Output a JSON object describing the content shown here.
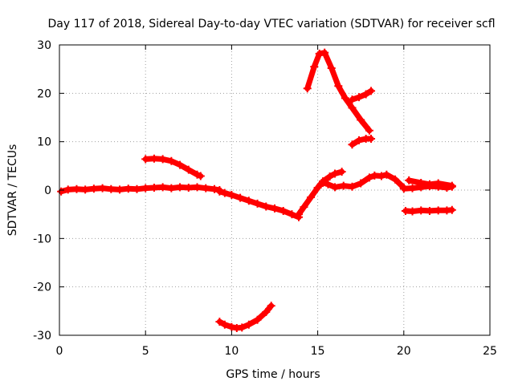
{
  "chart_data": {
    "type": "scatter",
    "title": "Day 117 of 2018, Sidereal Day-to-day VTEC variation (SDTVAR) for receiver scfl",
    "xlabel": "GPS time / hours",
    "ylabel": "SDTVAR / TECUs",
    "xlim": [
      0,
      25
    ],
    "ylim": [
      -30,
      30
    ],
    "xticks": [
      "0",
      "5",
      "10",
      "15",
      "20",
      "25"
    ],
    "yticks": [
      "-30",
      "-20",
      "-10",
      "0",
      "10",
      "20",
      "30"
    ],
    "grid": true,
    "marker": "+",
    "color": "#ff0000",
    "series": [
      {
        "x": [
          0.1,
          0.5,
          1.0,
          1.5,
          2.0,
          2.5,
          3.0,
          3.5,
          4.0,
          4.5,
          5.0,
          5.5,
          6.0,
          6.5,
          7.0,
          7.5,
          8.0,
          8.5,
          9.0,
          9.3
        ],
        "y": [
          -0.3,
          0.1,
          0.2,
          0.1,
          0.3,
          0.4,
          0.2,
          0.1,
          0.3,
          0.2,
          0.4,
          0.5,
          0.6,
          0.4,
          0.6,
          0.5,
          0.6,
          0.4,
          0.2,
          0.0
        ]
      },
      {
        "x": [
          9.3,
          9.6,
          10.0,
          10.5,
          11.0,
          11.5,
          12.0,
          12.5,
          13.0,
          13.5,
          13.9
        ],
        "y": [
          -0.3,
          -0.6,
          -1.0,
          -1.6,
          -2.2,
          -2.8,
          -3.4,
          -3.8,
          -4.3,
          -5.0,
          -5.6
        ]
      },
      {
        "x": [
          13.9,
          14.2,
          14.6,
          15.0,
          15.3,
          15.7,
          16.0,
          16.4
        ],
        "y": [
          -5.0,
          -3.5,
          -1.5,
          0.5,
          1.8,
          2.8,
          3.4,
          3.8
        ]
      },
      {
        "x": [
          15.3,
          15.6,
          16.0,
          16.5,
          17.0,
          17.5,
          18.0,
          18.3,
          18.7,
          19.0,
          19.5,
          20.0
        ],
        "y": [
          1.5,
          1.2,
          0.6,
          0.9,
          0.7,
          1.4,
          2.6,
          3.0,
          2.9,
          3.2,
          2.2,
          0.5
        ]
      },
      {
        "x": [
          20.0,
          20.5,
          21.0,
          21.5,
          22.0,
          22.5,
          22.8
        ],
        "y": [
          0.3,
          0.4,
          0.6,
          0.8,
          0.7,
          0.5,
          0.7
        ]
      },
      {
        "x": [
          20.3,
          21.0,
          21.5,
          22.0,
          22.8
        ],
        "y": [
          2.0,
          1.5,
          1.2,
          1.4,
          0.9
        ]
      },
      {
        "x": [
          20.1,
          20.5,
          21.0,
          21.5,
          22.0,
          22.5,
          22.8
        ],
        "y": [
          -4.3,
          -4.4,
          -4.2,
          -4.3,
          -4.2,
          -4.2,
          -4.1
        ]
      },
      {
        "x": [
          5.0,
          5.5,
          6.0,
          6.5,
          7.0,
          7.5,
          8.0,
          8.2
        ],
        "y": [
          6.4,
          6.5,
          6.4,
          6.0,
          5.2,
          4.2,
          3.2,
          2.9
        ]
      },
      {
        "x": [
          9.3,
          9.6,
          10.0,
          10.3,
          10.6,
          11.0,
          11.5,
          12.0,
          12.3
        ],
        "y": [
          -27.2,
          -27.8,
          -28.3,
          -28.5,
          -28.4,
          -27.8,
          -26.8,
          -25.2,
          -23.9
        ]
      },
      {
        "x": [
          14.4,
          14.8,
          15.1,
          15.4,
          15.8,
          16.2,
          16.6,
          17.0,
          17.5,
          18.0
        ],
        "y": [
          21.0,
          25.5,
          28.2,
          28.4,
          25.2,
          21.5,
          19.0,
          17.0,
          14.5,
          12.3
        ]
      },
      {
        "x": [
          17.0,
          17.4,
          17.8,
          18.1
        ],
        "y": [
          18.7,
          19.2,
          19.8,
          20.5
        ]
      },
      {
        "x": [
          17.0,
          17.4,
          17.8,
          18.1
        ],
        "y": [
          9.4,
          10.3,
          10.6,
          10.6
        ]
      }
    ]
  }
}
